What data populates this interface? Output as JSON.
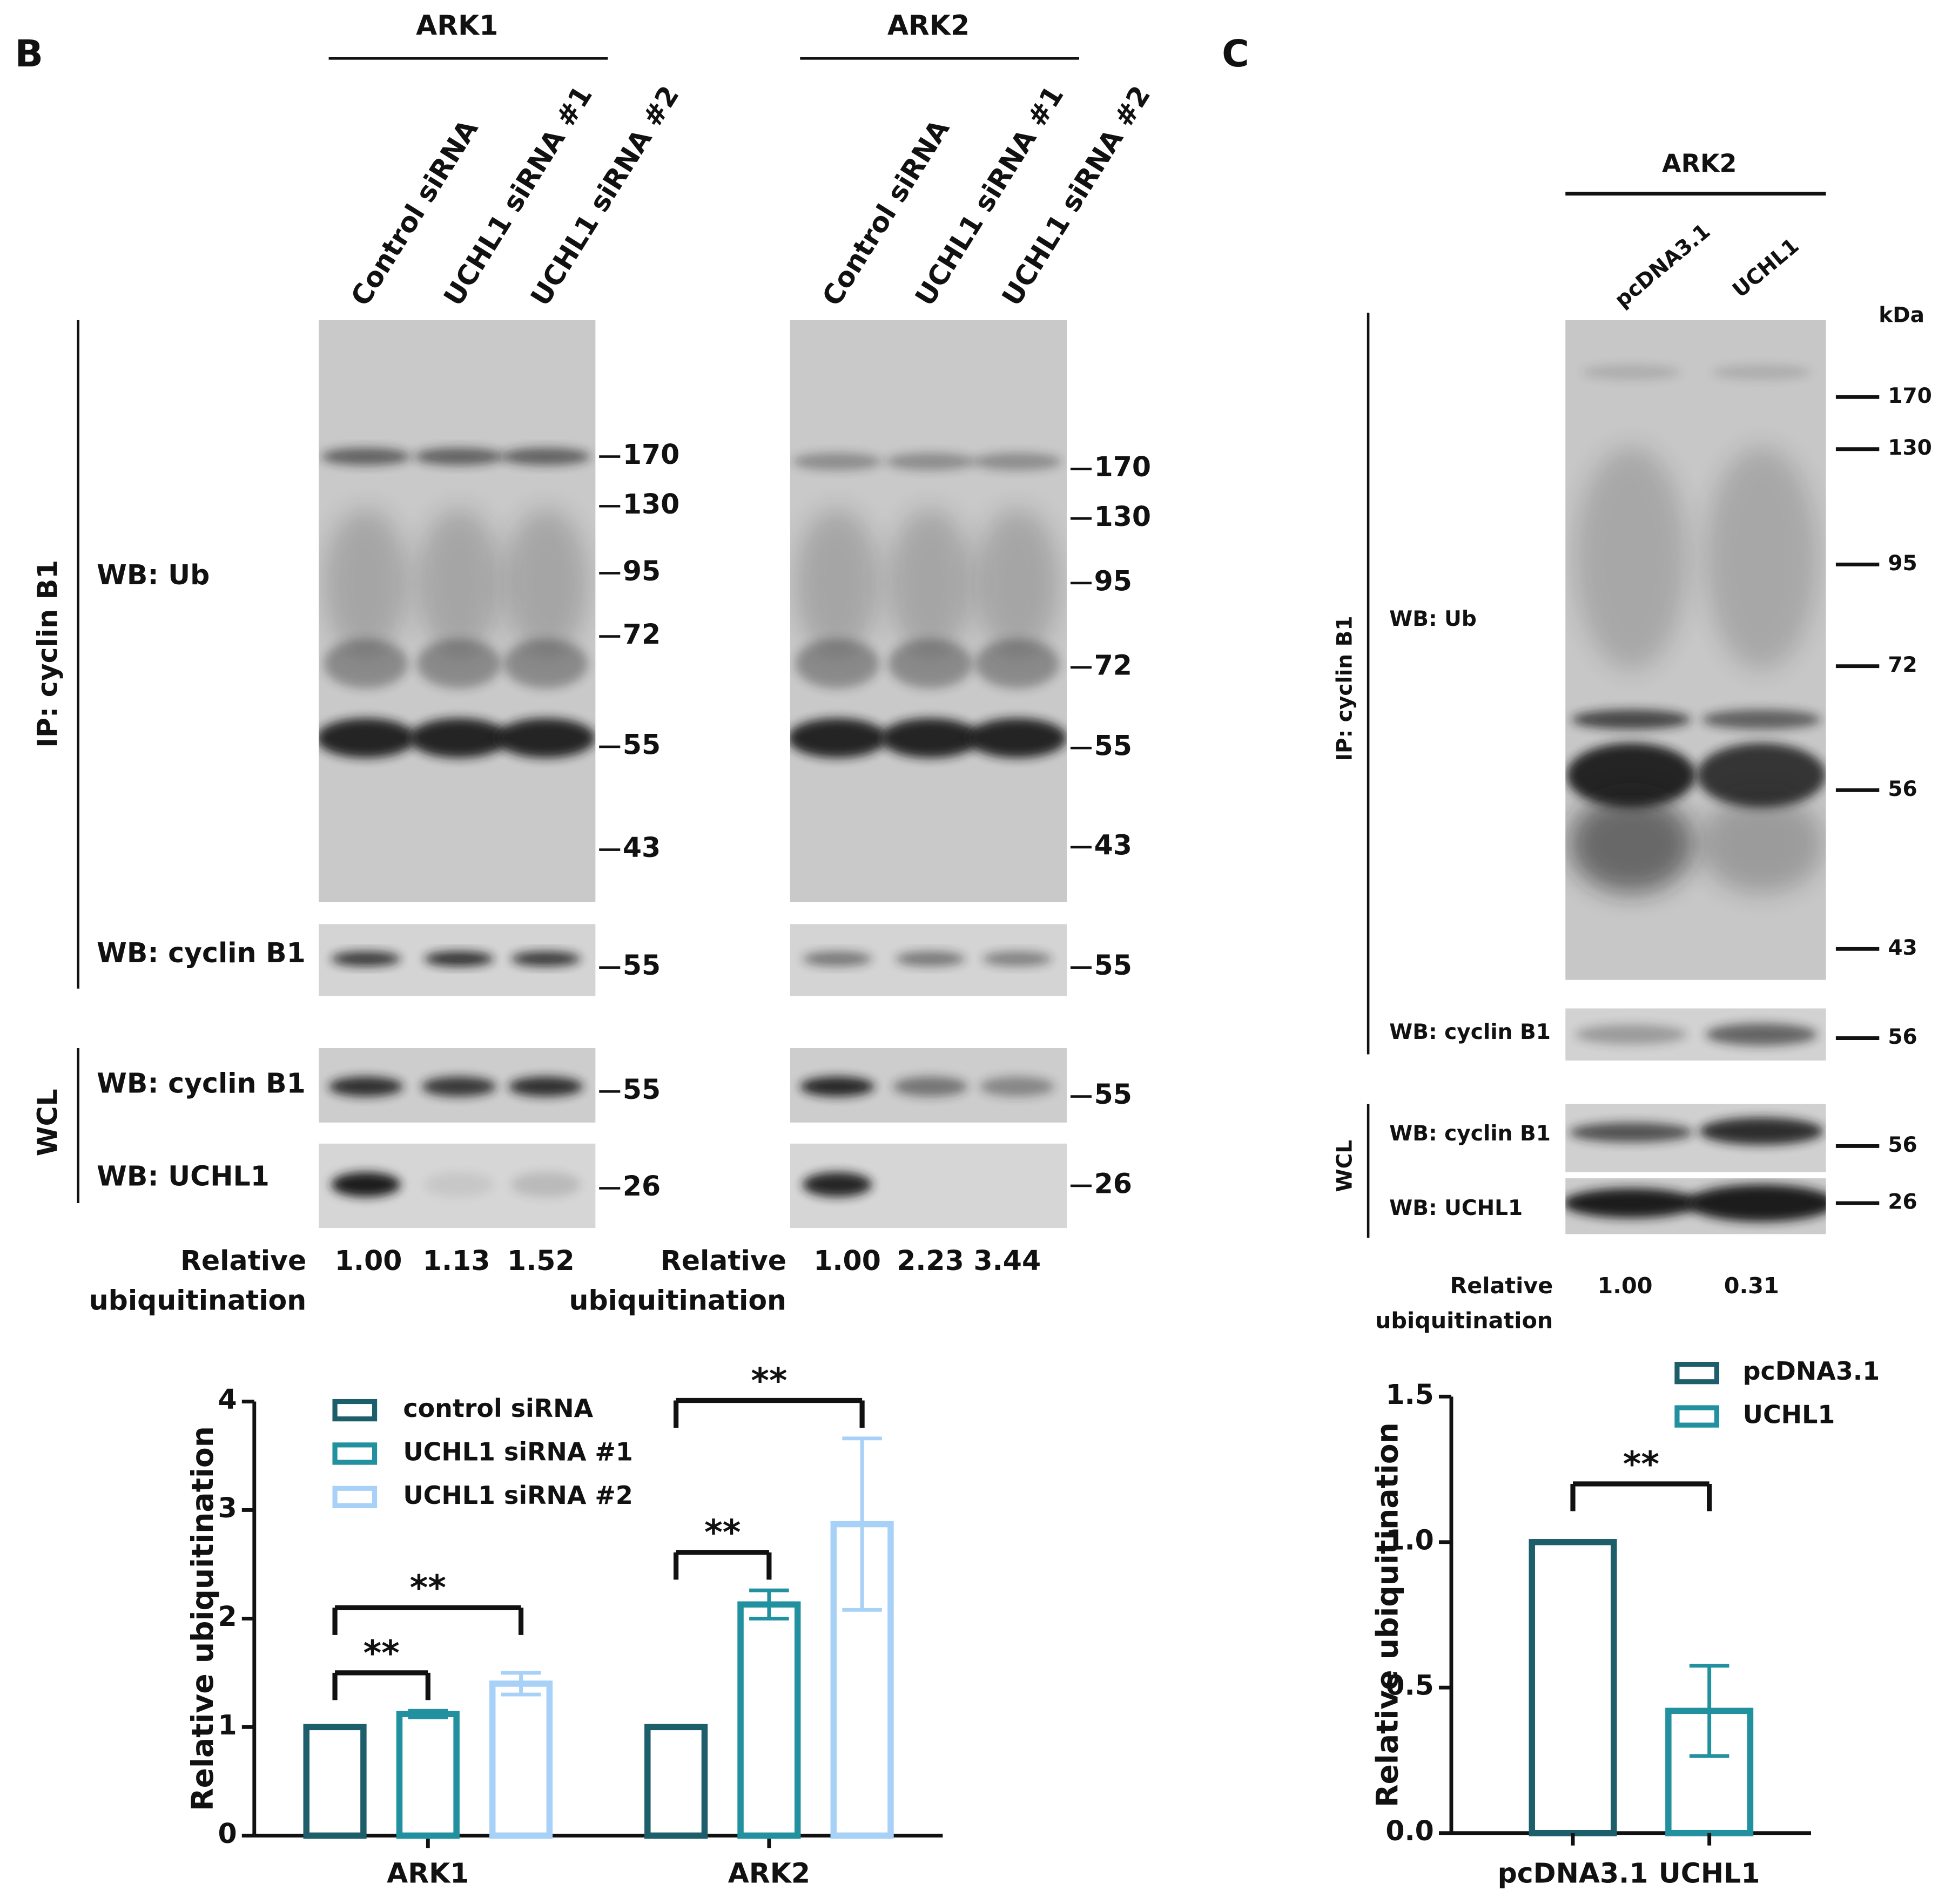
{
  "panel_b": {
    "label": "B",
    "row_labels": [
      "WB: Ub",
      "WB: cyclin B1",
      "WB: cyclin B1",
      "WB: UCHL1"
    ],
    "sections": [
      "IP: cyclin B1",
      "WCL"
    ],
    "groups": [
      {
        "title": "ARK1",
        "lanes": [
          "Control siRNA",
          "UCHL1 siRNA #1",
          "UCHL1 siRNA #2"
        ],
        "markers": [
          [
            170,
            130,
            95,
            72,
            55,
            43
          ],
          [
            55
          ],
          [
            55
          ],
          [
            26
          ]
        ],
        "relative_title": [
          "Relative",
          "ubiquitination"
        ],
        "relative": [
          "1.00",
          "1.13",
          "1.52"
        ]
      },
      {
        "title": "ARK2",
        "lanes": [
          "Control siRNA",
          "UCHL1 siRNA #1",
          "UCHL1 siRNA #2"
        ],
        "markers": [
          [
            170,
            130,
            95,
            72,
            55,
            43
          ],
          [
            55
          ],
          [
            55
          ],
          [
            26
          ]
        ],
        "relative_title": [
          "Relative",
          "ubiquitination"
        ],
        "relative": [
          "1.00",
          "2.23",
          "3.44"
        ]
      }
    ]
  },
  "panel_c": {
    "label": "C",
    "title": "ARK2",
    "lanes": [
      "pcDNA3.1",
      "UCHL1"
    ],
    "unit": "kDa",
    "row_labels": [
      "WB: Ub",
      "WB: cyclin B1",
      "WB: cyclin B1",
      "WB: UCHL1"
    ],
    "sections": [
      "IP: cyclin B1",
      "WCL"
    ],
    "markers": [
      [
        170,
        130,
        95,
        72,
        56,
        43
      ],
      [
        56
      ],
      [
        56
      ],
      [
        26
      ]
    ],
    "relative_title": [
      "Relative",
      "ubiquitination"
    ],
    "relative": [
      "1.00",
      "0.31"
    ]
  },
  "chart_data": [
    {
      "type": "grouped_bar",
      "ylabel": "Relative ubiquitination",
      "categories": [
        "ARK1",
        "ARK2"
      ],
      "series": [
        {
          "name": "control siRNA",
          "color": "#1d5e6b",
          "values": [
            1,
            1
          ]
        },
        {
          "name": "UCHL1 siRNA #1",
          "color": "#21909f",
          "values": [
            1.12,
            2.13
          ],
          "errors": [
            0.03,
            0.13
          ]
        },
        {
          "name": "UCHL1 siRNA #2",
          "color": "#a8d1f7",
          "values": [
            1.4,
            2.87
          ],
          "errors": [
            0.1,
            0.79
          ]
        }
      ],
      "ylim": [
        0,
        4
      ],
      "yticks": [
        0,
        1,
        2,
        3,
        4
      ],
      "annotations": [
        {
          "text": "**",
          "category": 0,
          "from": 0,
          "to": 1
        },
        {
          "text": "**",
          "category": 0,
          "from": 0,
          "to": 2
        },
        {
          "text": "**",
          "category": 1,
          "from": 0,
          "to": 1
        },
        {
          "text": "**",
          "category": 1,
          "from": 0,
          "to": 2
        }
      ]
    },
    {
      "type": "bar",
      "ylabel": "Relative ubiquitination",
      "categories": [
        "pcDNA3.1",
        "UCHL1"
      ],
      "values": [
        1.0,
        0.42
      ],
      "errors": [
        null,
        0.155
      ],
      "colors": [
        "#1d5e6b",
        "#21909f"
      ],
      "ylim": [
        0,
        1.5
      ],
      "yticks": [
        {
          "value": 0,
          "label": "0.0"
        },
        0.5,
        {
          "value": 1,
          "label": "1.0"
        },
        {
          "value": 1.5,
          "label": "1.5"
        }
      ],
      "annotations": [
        {
          "text": "**",
          "from": 0,
          "to": 1
        }
      ]
    }
  ]
}
